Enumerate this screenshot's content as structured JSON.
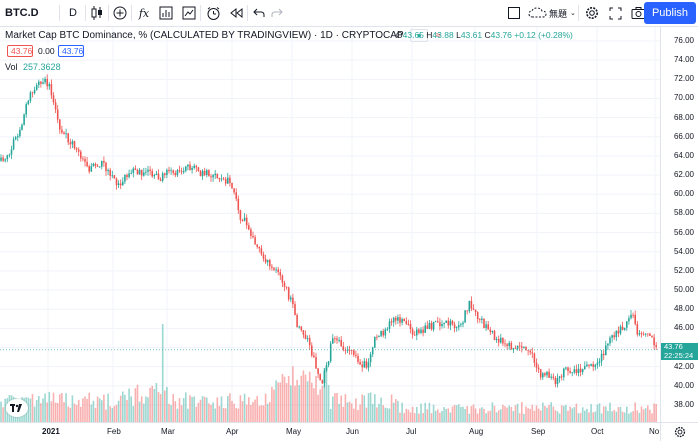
{
  "toolbar": {
    "symbol": "BTC.D",
    "interval": "D",
    "fx_label": "fx",
    "layout_name": "無題",
    "publish_label": "Publish"
  },
  "legend": {
    "title": "Market Cap BTC Dominance, % (CALCULATED BY TRADINGVIEW) · 1D · CRYPTOCAP",
    "o_key": "O",
    "o_val": "43.65",
    "h_key": "H",
    "h_val": "43.88",
    "l_key": "L",
    "l_val": "43.61",
    "c_key": "C",
    "c_val": "43.76",
    "change": "+0.12 (+0.28%)",
    "badge_sell": "43.76",
    "badge_spread": "0.00",
    "badge_buy": "43.76",
    "vol_label": "Vol",
    "vol_value": "257.3628"
  },
  "price_axis": {
    "ticks": [
      "76.00",
      "74.00",
      "72.00",
      "70.00",
      "68.00",
      "66.00",
      "64.00",
      "62.00",
      "60.00",
      "58.00",
      "56.00",
      "54.00",
      "52.00",
      "50.00",
      "48.00",
      "46.00",
      "44.00",
      "42.00",
      "40.00",
      "38.00"
    ],
    "last_price": "43.76",
    "countdown": "22:25:24"
  },
  "time_axis": {
    "ticks": [
      "2021",
      "Feb",
      "Mar",
      "Apr",
      "May",
      "Jun",
      "Jul",
      "Aug",
      "Sep",
      "Oct",
      "No"
    ]
  },
  "colors": {
    "up": "#26a69a",
    "down": "#ef5350",
    "accent": "#2962ff"
  },
  "chart_data": {
    "type": "candlestick",
    "series_name": "BTC.D",
    "ylim": [
      37,
      77
    ],
    "x_ticks": [
      "2021",
      "Feb",
      "Mar",
      "Apr",
      "May",
      "Jun",
      "Jul",
      "Aug",
      "Sep",
      "Oct",
      "No"
    ],
    "anchors": [
      [
        0,
        63.5
      ],
      [
        10,
        64.5
      ],
      [
        20,
        67
      ],
      [
        30,
        70.5
      ],
      [
        38,
        71.5
      ],
      [
        45,
        72.3
      ],
      [
        52,
        70.3
      ],
      [
        60,
        67
      ],
      [
        70,
        65.5
      ],
      [
        80,
        64
      ],
      [
        90,
        62.5
      ],
      [
        100,
        63.2
      ],
      [
        110,
        62.3
      ],
      [
        120,
        60.9
      ],
      [
        130,
        62.6
      ],
      [
        140,
        62.3
      ],
      [
        150,
        62.3
      ],
      [
        160,
        61.8
      ],
      [
        170,
        62.5
      ],
      [
        180,
        62.3
      ],
      [
        190,
        62.8
      ],
      [
        200,
        62.3
      ],
      [
        210,
        62.1
      ],
      [
        220,
        61.5
      ],
      [
        228,
        61.5
      ],
      [
        233,
        60.3
      ],
      [
        240,
        57.8
      ],
      [
        250,
        56.3
      ],
      [
        262,
        53.5
      ],
      [
        272,
        52.5
      ],
      [
        282,
        51.3
      ],
      [
        292,
        48.5
      ],
      [
        300,
        45.5
      ],
      [
        308,
        44.8
      ],
      [
        315,
        42.5
      ],
      [
        322,
        40.5
      ],
      [
        328,
        42.5
      ],
      [
        333,
        45.3
      ],
      [
        340,
        44.5
      ],
      [
        350,
        43.5
      ],
      [
        360,
        42.5
      ],
      [
        368,
        42.1
      ],
      [
        375,
        45.1
      ],
      [
        385,
        45.8
      ],
      [
        395,
        47.1
      ],
      [
        405,
        46.5
      ],
      [
        415,
        45.5
      ],
      [
        425,
        45.9
      ],
      [
        435,
        46.5
      ],
      [
        445,
        46.5
      ],
      [
        455,
        46.2
      ],
      [
        462,
        46.7
      ],
      [
        470,
        48.6
      ],
      [
        478,
        47.2
      ],
      [
        488,
        45.8
      ],
      [
        498,
        44.8
      ],
      [
        508,
        44.3
      ],
      [
        518,
        44.1
      ],
      [
        528,
        43.8
      ],
      [
        535,
        42.5
      ],
      [
        540,
        41.2
      ],
      [
        548,
        41.0
      ],
      [
        555,
        40.5
      ],
      [
        565,
        41.5
      ],
      [
        575,
        41.6
      ],
      [
        585,
        41.8
      ],
      [
        595,
        42.3
      ],
      [
        605,
        43.8
      ],
      [
        615,
        45.5
      ],
      [
        625,
        46.0
      ],
      [
        632,
        47.5
      ],
      [
        638,
        45.5
      ],
      [
        645,
        45.2
      ],
      [
        652,
        44.8
      ],
      [
        658,
        43.76
      ]
    ]
  }
}
